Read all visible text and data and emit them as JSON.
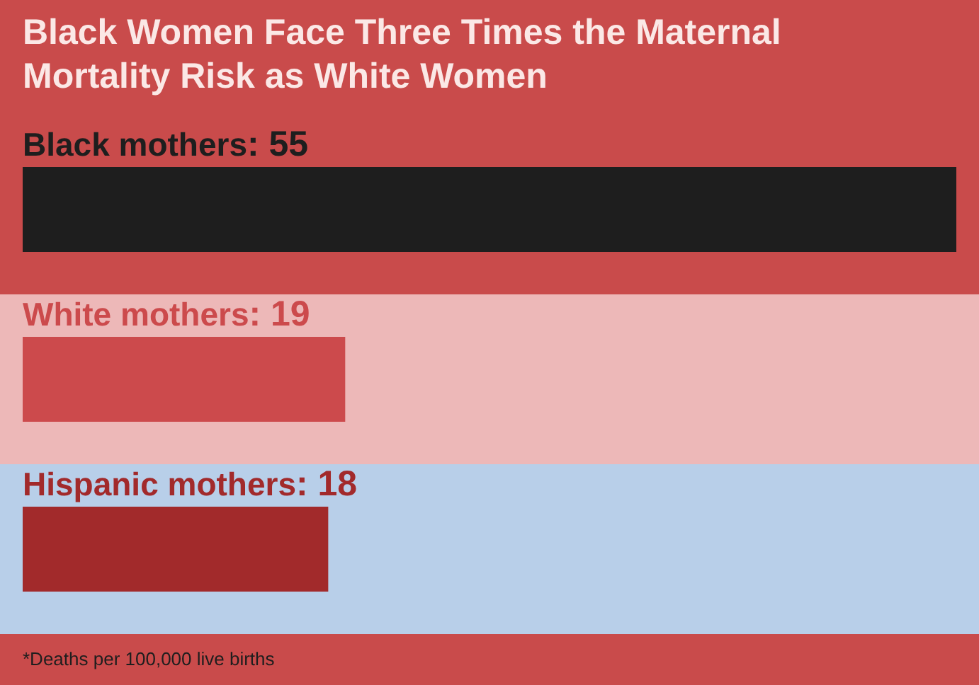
{
  "chart_data": {
    "type": "bar",
    "title": "Black Women Face Three Times the Maternal Mortality Risk as White Women",
    "categories": [
      "Black mothers",
      "White mothers",
      "Hispanic mothers"
    ],
    "values": [
      55,
      19,
      18
    ],
    "value_labels": [
      ": 55",
      ": 19",
      ": 18"
    ],
    "colors": [
      "#1e1e1e",
      "#cc4a4c",
      "#a22a2b"
    ],
    "orientation": "horizontal",
    "tick_labels": "y",
    "annotations": [
      "*Deaths per 100,000 live births"
    ]
  }
}
